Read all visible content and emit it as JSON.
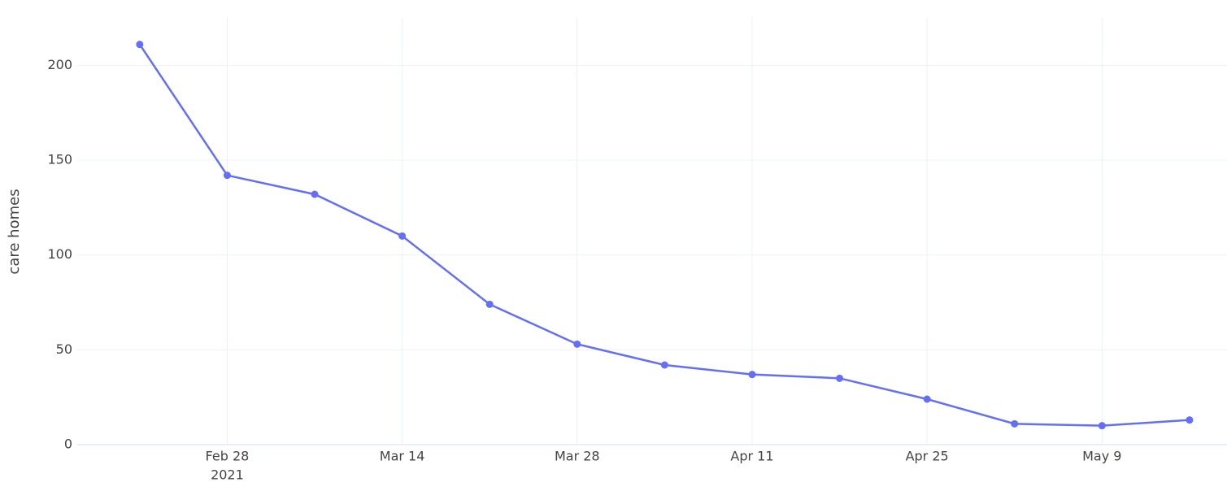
{
  "chart_data": {
    "type": "line",
    "y_label": "care homes",
    "x": [
      "2021-02-21",
      "2021-02-28",
      "2021-03-07",
      "2021-03-14",
      "2021-03-21",
      "2021-03-28",
      "2021-04-04",
      "2021-04-11",
      "2021-04-18",
      "2021-04-25",
      "2021-05-02",
      "2021-05-09",
      "2021-05-16"
    ],
    "series": [
      {
        "color": "#636efa",
        "values": [
          211,
          142,
          132,
          110,
          74,
          53,
          42,
          37,
          35,
          24,
          11,
          10,
          13
        ]
      }
    ],
    "xlim": [
      "2021-02-16",
      "2021-05-19"
    ],
    "xticks": [
      {
        "value": "2021-02-28",
        "label": "Feb 28",
        "year": "2021"
      },
      {
        "value": "2021-03-14",
        "label": "Mar 14"
      },
      {
        "value": "2021-03-28",
        "label": "Mar 28"
      },
      {
        "value": "2021-04-11",
        "label": "Apr 11"
      },
      {
        "value": "2021-04-25",
        "label": "Apr 25"
      },
      {
        "value": "2021-05-09",
        "label": "May 9"
      }
    ],
    "ylim": [
      0,
      225
    ],
    "yticks": [
      0,
      50,
      100,
      150,
      200
    ],
    "grid": true
  }
}
